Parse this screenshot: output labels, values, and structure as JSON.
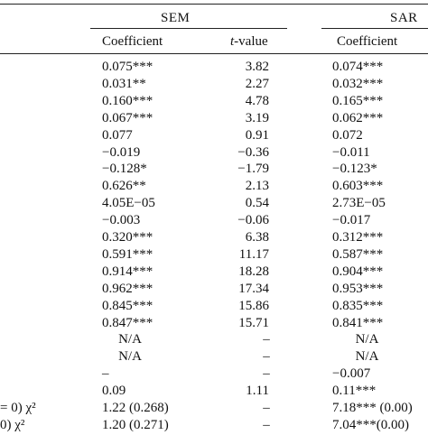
{
  "groups": {
    "sem": "SEM",
    "sar": "SAR"
  },
  "headers": {
    "sem_coef": "Coefficient",
    "sem_t_italic": "t",
    "sem_t_rest": "-value",
    "sar_coef": "Coefficient"
  },
  "rows": [
    {
      "stub": "",
      "c1": "0.075***",
      "c2": "3.82",
      "c3": "0.074***"
    },
    {
      "stub": "",
      "c1": "0.031**",
      "c2": "2.27",
      "c3": "0.032***"
    },
    {
      "stub": "",
      "c1": "0.160***",
      "c2": "4.78",
      "c3": "0.165***"
    },
    {
      "stub": "",
      "c1": "0.067***",
      "c2": "3.19",
      "c3": "0.062***"
    },
    {
      "stub": "",
      "c1": "0.077",
      "c2": "0.91",
      "c3": "0.072"
    },
    {
      "stub": "",
      "c1": "−0.019",
      "c2": "−0.36",
      "c3": "−0.011"
    },
    {
      "stub": "",
      "c1": "−0.128*",
      "c2": "−1.79",
      "c3": "−0.123*"
    },
    {
      "stub": "",
      "c1": "0.626**",
      "c2": "2.13",
      "c3": "0.603***"
    },
    {
      "stub": "",
      "c1": "4.05E−05",
      "c2": "0.54",
      "c3": "2.73E−05"
    },
    {
      "stub": "",
      "c1": "−0.003",
      "c2": "−0.06",
      "c3": "−0.017"
    },
    {
      "stub": "",
      "c1": "0.320***",
      "c2": "6.38",
      "c3": "0.312***"
    },
    {
      "stub": "",
      "c1": "0.591***",
      "c2": "11.17",
      "c3": "0.587***"
    },
    {
      "stub": "",
      "c1": "0.914***",
      "c2": "18.28",
      "c3": "0.904***"
    },
    {
      "stub": "",
      "c1": "0.962***",
      "c2": "17.34",
      "c3": "0.953***"
    },
    {
      "stub": "",
      "c1": "0.845***",
      "c2": "15.86",
      "c3": "0.835***"
    },
    {
      "stub": "",
      "c1": "0.847***",
      "c2": "15.71",
      "c3": "0.841***"
    },
    {
      "stub": "",
      "c1": "N/A",
      "c2": "–",
      "c3": "N/A",
      "center": true
    },
    {
      "stub": "",
      "c1": "N/A",
      "c2": "–",
      "c3": "N/A",
      "center": true
    },
    {
      "stub": "",
      "c1": "–",
      "c2": "–",
      "c3": "−0.007"
    },
    {
      "stub": "",
      "c1": "0.09",
      "c2": "1.11",
      "c3": "0.11***"
    },
    {
      "stub": "= 0) χ²",
      "c1": "1.22 (0.268)",
      "c2": "–",
      "c3": "7.18*** (0.00)"
    },
    {
      "stub": "0) χ²",
      "c1": "1.20 (0.271)",
      "c2": "–",
      "c3": "7.04***(0.00)"
    }
  ]
}
